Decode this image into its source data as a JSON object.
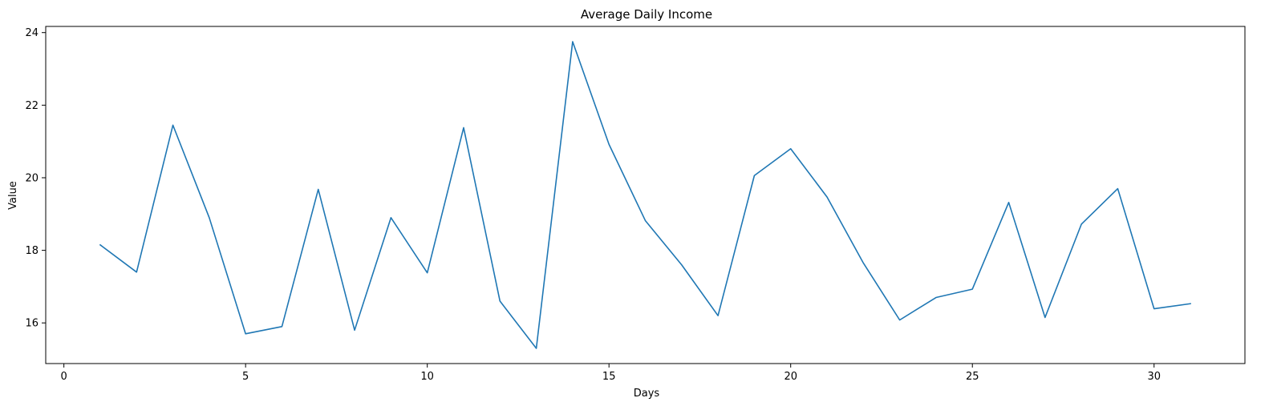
{
  "chart_data": {
    "type": "line",
    "title": "Average Daily Income",
    "xlabel": "Days",
    "ylabel": "Value",
    "xlim": [
      -0.5,
      32.5
    ],
    "ylim": [
      14.88,
      24.17
    ],
    "xticks": [
      0,
      5,
      10,
      15,
      20,
      25,
      30
    ],
    "yticks": [
      16,
      18,
      20,
      22,
      24
    ],
    "grid": false,
    "series": [
      {
        "color": "#1f77b4",
        "x": [
          1,
          2,
          3,
          4,
          5,
          6,
          7,
          8,
          9,
          10,
          11,
          12,
          13,
          14,
          15,
          16,
          17,
          18,
          19,
          20,
          21,
          22,
          23,
          24,
          25,
          26,
          27,
          28,
          29,
          30,
          31
        ],
        "y": [
          18.15,
          17.4,
          21.45,
          18.9,
          15.7,
          15.9,
          19.68,
          15.8,
          18.9,
          17.38,
          21.38,
          16.6,
          15.3,
          23.75,
          20.92,
          18.82,
          17.6,
          16.2,
          20.06,
          20.8,
          19.47,
          17.65,
          16.08,
          16.7,
          16.93,
          19.32,
          16.15,
          18.72,
          19.7,
          16.39,
          16.53
        ]
      }
    ]
  }
}
